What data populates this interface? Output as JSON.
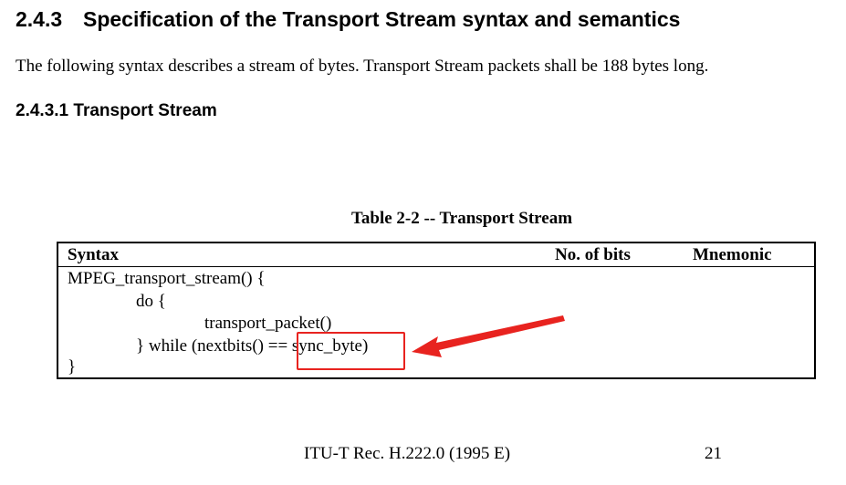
{
  "section": {
    "number": "2.4.3",
    "title": "Specification of the Transport Stream syntax and semantics"
  },
  "intro_text": "The following syntax describes a stream of bytes. Transport Stream packets shall be 188 bytes long.",
  "subsection": {
    "number": "2.4.3.1",
    "title": "Transport Stream"
  },
  "table": {
    "caption": "Table 2-2 -- Transport Stream",
    "headers": {
      "syntax": "Syntax",
      "bits": "No. of bits",
      "mnemonic": "Mnemonic"
    },
    "lines": [
      "MPEG_transport_stream() {",
      "do {",
      "transport_packet()",
      "} while (nextbits() == sync_byte)",
      "}"
    ]
  },
  "annotation": {
    "highlighted_text": "sync_byte)",
    "color": "#e8231f"
  },
  "footer": {
    "reference": "ITU-T Rec. H.222.0 (1995 E)",
    "page": "21"
  }
}
